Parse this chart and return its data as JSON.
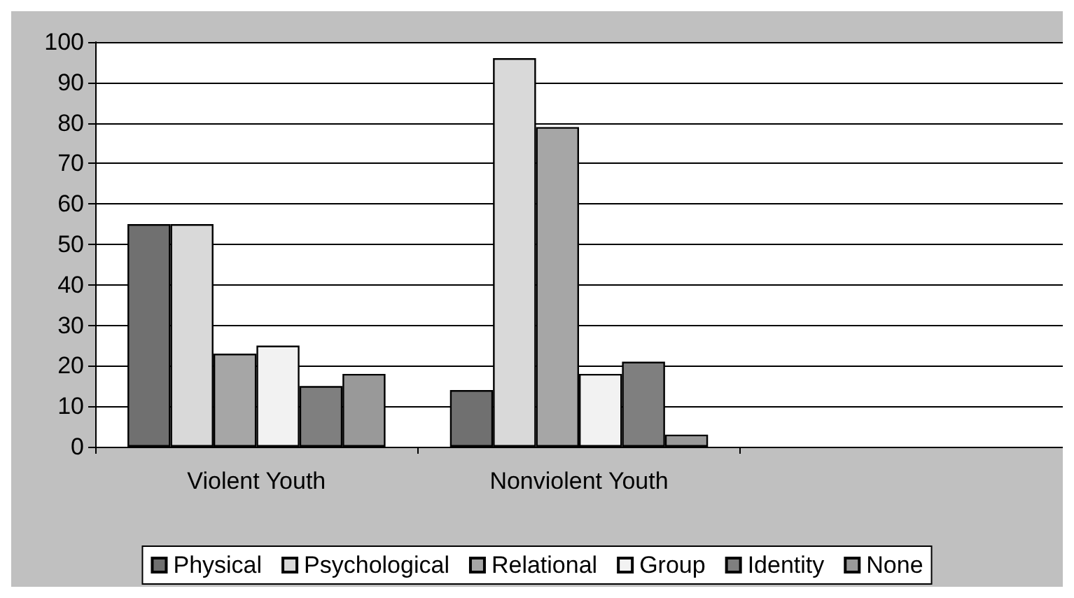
{
  "chart_data": {
    "type": "bar",
    "categories": [
      "Violent Youth",
      "Nonviolent Youth",
      null
    ],
    "series": [
      {
        "name": "Physical",
        "color": "#707070",
        "values": [
          55,
          14,
          null
        ]
      },
      {
        "name": "Psychological",
        "color": "#d9d9d9",
        "values": [
          55,
          96,
          null
        ]
      },
      {
        "name": "Relational",
        "color": "#a6a6a6",
        "values": [
          23,
          79,
          null
        ]
      },
      {
        "name": "Group",
        "color": "#f2f2f2",
        "values": [
          25,
          18,
          null
        ]
      },
      {
        "name": "Identity",
        "color": "#7f7f7f",
        "values": [
          15,
          21,
          null
        ]
      },
      {
        "name": "None",
        "color": "#999999",
        "values": [
          18,
          3,
          null
        ]
      }
    ],
    "ylim": [
      0,
      100
    ],
    "yticks": [
      0,
      10,
      20,
      30,
      40,
      50,
      60,
      70,
      80,
      90,
      100
    ],
    "grid": "y",
    "legend": "bottom"
  }
}
